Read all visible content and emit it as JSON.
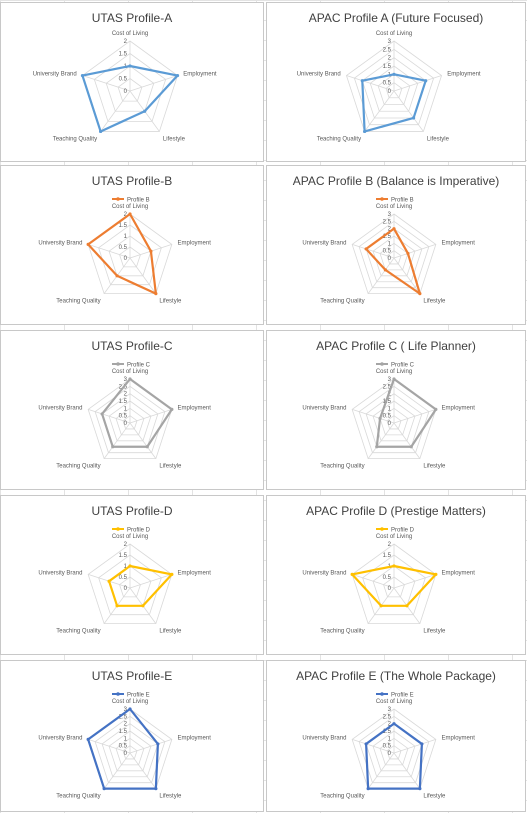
{
  "chart_data": [
    {
      "type": "radar",
      "title": "UTAS Profile-A",
      "axes": [
        "Cost of Living",
        "Employment",
        "Lifestyle",
        "Teaching Quality",
        "University Brand"
      ],
      "ticks": [
        "0",
        "0.5",
        "1",
        "1.5",
        "2"
      ],
      "rmax": 2,
      "legend": "",
      "series": [
        {
          "name": "",
          "color": "#5b9bd5",
          "values": [
            1,
            2,
            1,
            2,
            2
          ]
        }
      ]
    },
    {
      "type": "radar",
      "title": "APAC Profile A (Future Focused)",
      "axes": [
        "Cost of Living",
        "Employment",
        "Lifestyle",
        "Teaching Quality",
        "University Brand"
      ],
      "ticks": [
        "0",
        "0.5",
        "1",
        "1.5",
        "2",
        "2.5",
        "3"
      ],
      "rmax": 3,
      "legend": "",
      "series": [
        {
          "name": "",
          "color": "#5b9bd5",
          "values": [
            1,
            2,
            2,
            3,
            2
          ]
        }
      ]
    },
    {
      "type": "radar",
      "title": "UTAS Profile-B",
      "axes": [
        "Cost of Living",
        "Employment",
        "Lifestyle",
        "Teaching Quality",
        "University Brand"
      ],
      "ticks": [
        "0",
        "0.5",
        "1",
        "1.5",
        "2"
      ],
      "rmax": 2,
      "legend": "Profile B",
      "series": [
        {
          "name": "Profile B",
          "color": "#ed7d31",
          "values": [
            2,
            1,
            2,
            1,
            2
          ]
        }
      ]
    },
    {
      "type": "radar",
      "title": "APAC Profile B (Balance is Imperative)",
      "axes": [
        "Cost of Living",
        "Employment",
        "Lifestyle",
        "Teaching Quality",
        "University Brand"
      ],
      "ticks": [
        "0",
        "0.5",
        "1",
        "1.5",
        "2",
        "2.5",
        "3"
      ],
      "rmax": 3,
      "legend": "Profile B",
      "series": [
        {
          "name": "Profile B",
          "color": "#ed7d31",
          "values": [
            2,
            1,
            3,
            1,
            2
          ]
        }
      ]
    },
    {
      "type": "radar",
      "title": "UTAS Profile-C",
      "axes": [
        "Cost of Living",
        "Employment",
        "Lifestyle",
        "Teaching Quality",
        "University Brand"
      ],
      "ticks": [
        "0",
        "0.5",
        "1",
        "1.5",
        "2",
        "2.5",
        "3"
      ],
      "rmax": 3,
      "legend": "Profile C",
      "series": [
        {
          "name": "Profile C",
          "color": "#a5a5a5",
          "values": [
            3,
            3,
            2,
            2,
            2
          ]
        }
      ]
    },
    {
      "type": "radar",
      "title": "APAC Profile C ( Life Planner)",
      "axes": [
        "Cost of Living",
        "Employment",
        "Lifestyle",
        "Teaching Quality",
        "University Brand"
      ],
      "ticks": [
        "0",
        "0.5",
        "1",
        "1.5",
        "2",
        "2.5",
        "3"
      ],
      "rmax": 3,
      "legend": "Profile C",
      "series": [
        {
          "name": "Profile C",
          "color": "#a5a5a5",
          "values": [
            3,
            3,
            2,
            2,
            1
          ]
        }
      ]
    },
    {
      "type": "radar",
      "title": "UTAS Profile-D",
      "axes": [
        "Cost of Living",
        "Employment",
        "Lifestyle",
        "Teaching Quality",
        "University Brand"
      ],
      "ticks": [
        "0",
        "0.5",
        "1",
        "1.5",
        "2"
      ],
      "rmax": 2,
      "legend": "Profile D",
      "series": [
        {
          "name": "Profile D",
          "color": "#ffc000",
          "values": [
            1,
            2,
            1,
            1,
            1
          ]
        }
      ]
    },
    {
      "type": "radar",
      "title": "APAC Profile D (Prestige Matters)",
      "axes": [
        "Cost of Living",
        "Employment",
        "Lifestyle",
        "Teaching Quality",
        "University Brand"
      ],
      "ticks": [
        "0",
        "0.5",
        "1",
        "1.5",
        "2"
      ],
      "rmax": 2,
      "legend": "Profile D",
      "series": [
        {
          "name": "Profile D",
          "color": "#ffc000",
          "values": [
            1,
            2,
            1,
            1,
            2
          ]
        }
      ]
    },
    {
      "type": "radar",
      "title": "UTAS Profile-E",
      "axes": [
        "Cost of Living",
        "Employment",
        "Lifestyle",
        "Teaching Quality",
        "University Brand"
      ],
      "ticks": [
        "0",
        "0.5",
        "1",
        "1.5",
        "2",
        "2.5",
        "3"
      ],
      "rmax": 3,
      "legend": "Profile E",
      "series": [
        {
          "name": "Profile E",
          "color": "#4472c4",
          "values": [
            3,
            2,
            3,
            3,
            3
          ]
        }
      ]
    },
    {
      "type": "radar",
      "title": "APAC Profile E (The Whole Package)",
      "axes": [
        "Cost of Living",
        "Employment",
        "Lifestyle",
        "Teaching Quality",
        "University Brand"
      ],
      "ticks": [
        "0",
        "0.5",
        "1",
        "1.5",
        "2",
        "2.5",
        "3"
      ],
      "rmax": 3,
      "legend": "Profile E",
      "series": [
        {
          "name": "Profile E",
          "color": "#4472c4",
          "values": [
            2,
            2,
            3,
            3,
            2
          ]
        }
      ]
    }
  ]
}
